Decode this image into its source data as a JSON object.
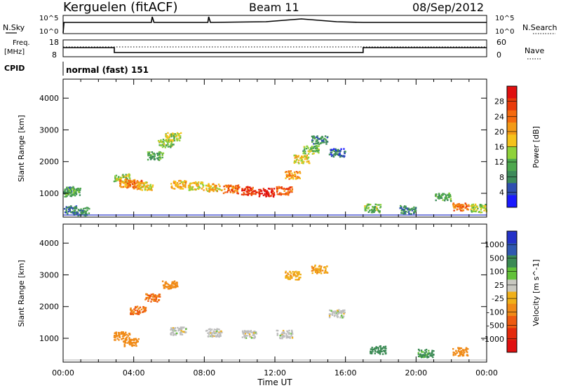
{
  "header": {
    "station": "Kerguelen (fitACF)",
    "beam": "Beam 11",
    "date": "08/Sep/2012"
  },
  "status_panels": {
    "nsky_label": "N.Sky",
    "nsearch_label": "N.Search",
    "nsky_ticks": [
      "10^5",
      "10^0"
    ],
    "nsearch_ticks": [
      "10^5",
      "10^0"
    ],
    "freq_label_1": "Freq.",
    "freq_label_2": "[MHz]",
    "freq_ticks": [
      "18",
      "8"
    ],
    "nave_label": "Nave",
    "nave_ticks": [
      "60",
      "0"
    ],
    "cpid_label": "CPID",
    "cpid_value": "normal (fast) 151"
  },
  "colors": {
    "power": [
      "#1a1aff",
      "#2f4fb0",
      "#3d8a5a",
      "#4ea84e",
      "#8fd23a",
      "#f5c21b",
      "#f39a17",
      "#f46a0f",
      "#e93a0a",
      "#e01010"
    ],
    "velocity": [
      "#2432c8",
      "#2f58b0",
      "#3b8a54",
      "#63c23a",
      "#c8c8c0",
      "#f0b01a",
      "#f08a17",
      "#ee5a10",
      "#e42a0c",
      "#e01010"
    ],
    "ground_scatter": "#bdbdbd"
  },
  "chart_data": [
    {
      "type": "heatmap",
      "name": "power",
      "ylabel": "Slant Range [km]",
      "xlabel": "Time UT",
      "x_ticks": [
        "00:00",
        "04:00",
        "08:00",
        "12:00",
        "16:00",
        "20:00",
        "00:00"
      ],
      "y_ticks": [
        "1000",
        "2000",
        "3000",
        "4000"
      ],
      "xlim": [
        0,
        24
      ],
      "ylim": [
        250,
        4600
      ],
      "colorbar_label": "Power [dB]",
      "colorbar_ticks": [
        "28",
        "24",
        "20",
        "16",
        "12",
        "8",
        "4"
      ],
      "cells": [
        {
          "t": 0.2,
          "r": 1100,
          "v": 8
        },
        {
          "t": 0.5,
          "r": 1050,
          "v": 10
        },
        {
          "t": 0.3,
          "r": 500,
          "v": 6
        },
        {
          "t": 1.0,
          "r": 450,
          "v": 8
        },
        {
          "t": 3.3,
          "r": 1500,
          "v": 14
        },
        {
          "t": 3.6,
          "r": 1350,
          "v": 20
        },
        {
          "t": 4.0,
          "r": 1300,
          "v": 22
        },
        {
          "t": 4.6,
          "r": 1250,
          "v": 16
        },
        {
          "t": 5.2,
          "r": 2200,
          "v": 10
        },
        {
          "t": 5.8,
          "r": 2600,
          "v": 12
        },
        {
          "t": 6.2,
          "r": 2800,
          "v": 14
        },
        {
          "t": 6.5,
          "r": 1300,
          "v": 18
        },
        {
          "t": 7.5,
          "r": 1250,
          "v": 16
        },
        {
          "t": 8.5,
          "r": 1200,
          "v": 18
        },
        {
          "t": 9.5,
          "r": 1150,
          "v": 22
        },
        {
          "t": 10.5,
          "r": 1100,
          "v": 26
        },
        {
          "t": 11.5,
          "r": 1050,
          "v": 28
        },
        {
          "t": 12.5,
          "r": 1100,
          "v": 24
        },
        {
          "t": 13.0,
          "r": 1600,
          "v": 20
        },
        {
          "t": 13.5,
          "r": 2100,
          "v": 16
        },
        {
          "t": 14.0,
          "r": 2400,
          "v": 12
        },
        {
          "t": 14.5,
          "r": 2700,
          "v": 8
        },
        {
          "t": 15.5,
          "r": 2300,
          "v": 6
        },
        {
          "t": 17.5,
          "r": 550,
          "v": 12
        },
        {
          "t": 19.5,
          "r": 500,
          "v": 8
        },
        {
          "t": 21.5,
          "r": 900,
          "v": 10
        },
        {
          "t": 22.5,
          "r": 600,
          "v": 22
        },
        {
          "t": 23.5,
          "r": 550,
          "v": 14
        }
      ]
    },
    {
      "type": "heatmap",
      "name": "velocity",
      "ylabel": "Slant Range [km]",
      "xlabel": "Time UT",
      "x_ticks": [
        "00:00",
        "04:00",
        "08:00",
        "12:00",
        "16:00",
        "20:00",
        "00:00"
      ],
      "y_ticks": [
        "1000",
        "2000",
        "3000",
        "4000"
      ],
      "xlim": [
        0,
        24
      ],
      "ylim": [
        250,
        4600
      ],
      "colorbar_label": "Velocity [m s^-1]",
      "colorbar_ticks": [
        "1000",
        "500",
        "100",
        "25",
        "-25",
        "-100",
        "-500",
        "-1000"
      ],
      "cells": [
        {
          "t": 3.3,
          "r": 1100,
          "v": -300
        },
        {
          "t": 3.8,
          "r": 900,
          "v": -200
        },
        {
          "t": 4.2,
          "r": 1900,
          "v": -500
        },
        {
          "t": 5.0,
          "r": 2300,
          "v": -500
        },
        {
          "t": 6.0,
          "r": 2700,
          "v": -400
        },
        {
          "t": 6.5,
          "r": 1250,
          "v": 0
        },
        {
          "t": 8.5,
          "r": 1200,
          "v": 0
        },
        {
          "t": 10.5,
          "r": 1150,
          "v": 0
        },
        {
          "t": 12.5,
          "r": 1150,
          "v": 0
        },
        {
          "t": 13.0,
          "r": 3000,
          "v": -80
        },
        {
          "t": 14.5,
          "r": 3200,
          "v": -100
        },
        {
          "t": 15.5,
          "r": 1800,
          "v": 0
        },
        {
          "t": 17.8,
          "r": 650,
          "v": 150
        },
        {
          "t": 20.5,
          "r": 550,
          "v": 120
        },
        {
          "t": 22.5,
          "r": 600,
          "v": -150
        }
      ]
    }
  ]
}
